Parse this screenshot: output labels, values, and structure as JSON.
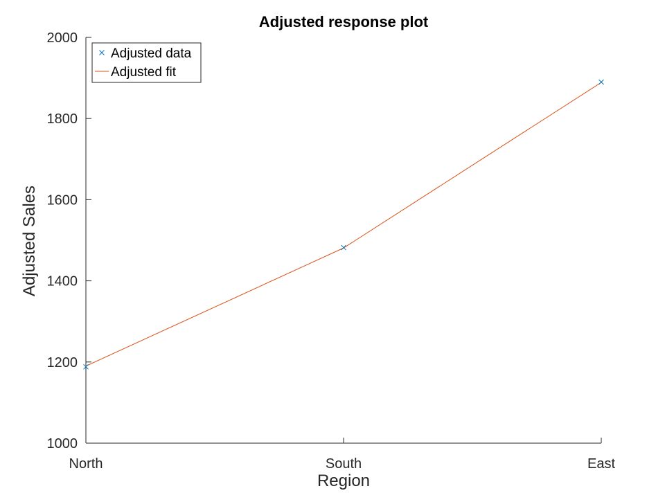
{
  "chart_data": {
    "type": "line",
    "title": "Adjusted response plot",
    "xlabel": "Region",
    "ylabel": "Adjusted Sales",
    "categories": [
      "North",
      "South",
      "East"
    ],
    "ylim": [
      1000,
      2000
    ],
    "yticks": [
      1000,
      1200,
      1400,
      1600,
      1800,
      2000
    ],
    "grid": false,
    "legend_position": "top-left",
    "series": [
      {
        "name": "Adjusted data",
        "style": "markers",
        "marker": "x",
        "color": "#0072BD",
        "values": [
          1188,
          1482,
          1890
        ]
      },
      {
        "name": "Adjusted fit",
        "style": "line",
        "color": "#D95319",
        "values": [
          1190,
          1481,
          1889
        ]
      }
    ]
  }
}
